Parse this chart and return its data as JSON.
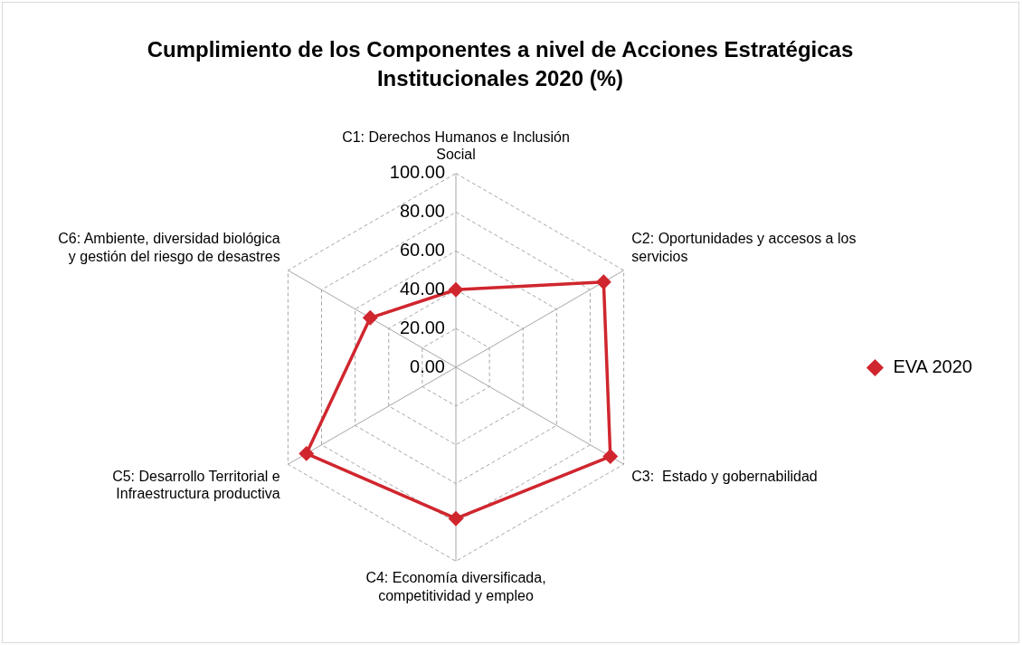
{
  "chart_data": {
    "type": "radar",
    "title": "Cumplimiento de los Componentes  a nivel de Acciones Estratégicas Institucionales 2020 (%)",
    "categories": [
      "C1: Derechos Humanos e Inclusión Social",
      "C2: Oportunidades y accesos a los servicios",
      "C3:  Estado y gobernabilidad",
      "C4: Economía diversificada, competitividad y empleo",
      "C5: Desarrollo Territorial e Infraestructura productiva",
      "C6: Ambiente, diversidad biológica y gestión del riesgo de desastres"
    ],
    "series": [
      {
        "name": "EVA 2020",
        "color": "#d0262e",
        "values": [
          40,
          88,
          92,
          78,
          89,
          51
        ]
      }
    ],
    "ylim": [
      0,
      100
    ],
    "yticks": [
      {
        "value": 0,
        "label": "0.00"
      },
      {
        "value": 20,
        "label": "20.00"
      },
      {
        "value": 40,
        "label": "40.00"
      },
      {
        "value": 60,
        "label": "60.00"
      },
      {
        "value": 80,
        "label": "80.00"
      },
      {
        "value": 100,
        "label": "100.00"
      }
    ],
    "grid": true,
    "legend": "right",
    "marker": "diamond",
    "line_style": "solid"
  }
}
